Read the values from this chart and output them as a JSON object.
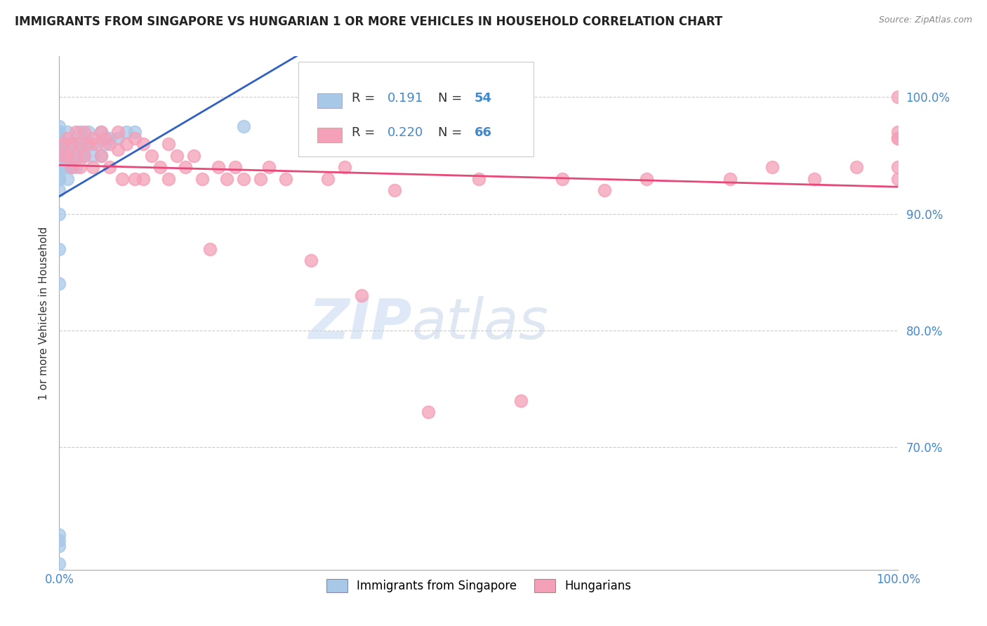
{
  "title": "IMMIGRANTS FROM SINGAPORE VS HUNGARIAN 1 OR MORE VEHICLES IN HOUSEHOLD CORRELATION CHART",
  "source": "Source: ZipAtlas.com",
  "ylabel": "1 or more Vehicles in Household",
  "ytick_values": [
    0.7,
    0.8,
    0.9,
    1.0
  ],
  "xlim": [
    0.0,
    1.0
  ],
  "ylim": [
    0.595,
    1.035
  ],
  "legend_label1": "Immigrants from Singapore",
  "legend_label2": "Hungarians",
  "r1": 0.191,
  "n1": 54,
  "r2": 0.22,
  "n2": 66,
  "color1": "#a8c8e8",
  "color2": "#f4a0b8",
  "trendline1_color": "#3060c0",
  "trendline2_color": "#e84878",
  "grid_color": "#cccccc",
  "singapore_x": [
    0.0,
    0.0,
    0.0,
    0.0,
    0.0,
    0.0,
    0.0,
    0.0,
    0.0,
    0.0,
    0.0,
    0.0,
    0.0,
    0.0,
    0.0,
    0.0,
    0.0,
    0.0,
    0.0,
    0.0,
    0.0,
    0.0,
    0.0,
    0.0,
    0.0,
    0.0,
    0.0,
    0.005,
    0.005,
    0.01,
    0.01,
    0.01,
    0.01,
    0.015,
    0.015,
    0.02,
    0.02,
    0.02,
    0.025,
    0.025,
    0.03,
    0.03,
    0.035,
    0.04,
    0.04,
    0.05,
    0.05,
    0.055,
    0.06,
    0.07,
    0.08,
    0.09,
    0.22,
    0.3
  ],
  "singapore_y": [
    0.6,
    0.615,
    0.62,
    0.625,
    0.84,
    0.87,
    0.9,
    0.92,
    0.93,
    0.93,
    0.94,
    0.94,
    0.94,
    0.945,
    0.945,
    0.95,
    0.95,
    0.955,
    0.955,
    0.96,
    0.96,
    0.965,
    0.965,
    0.97,
    0.97,
    0.97,
    0.975,
    0.94,
    0.96,
    0.93,
    0.94,
    0.95,
    0.97,
    0.94,
    0.96,
    0.94,
    0.95,
    0.96,
    0.95,
    0.97,
    0.95,
    0.96,
    0.97,
    0.95,
    0.96,
    0.95,
    0.97,
    0.96,
    0.965,
    0.965,
    0.97,
    0.97,
    0.975,
    1.0
  ],
  "hungarian_x": [
    0.005,
    0.005,
    0.01,
    0.01,
    0.015,
    0.015,
    0.02,
    0.02,
    0.025,
    0.025,
    0.03,
    0.03,
    0.035,
    0.04,
    0.04,
    0.045,
    0.05,
    0.05,
    0.055,
    0.06,
    0.06,
    0.07,
    0.07,
    0.075,
    0.08,
    0.09,
    0.09,
    0.1,
    0.1,
    0.11,
    0.12,
    0.13,
    0.13,
    0.14,
    0.15,
    0.16,
    0.17,
    0.18,
    0.19,
    0.2,
    0.21,
    0.22,
    0.24,
    0.25,
    0.27,
    0.3,
    0.32,
    0.34,
    0.36,
    0.4,
    0.44,
    0.5,
    0.55,
    0.6,
    0.65,
    0.7,
    0.8,
    0.85,
    0.9,
    0.95,
    1.0,
    1.0,
    1.0,
    1.0,
    1.0,
    1.0
  ],
  "hungarian_y": [
    0.96,
    0.95,
    0.965,
    0.95,
    0.96,
    0.94,
    0.97,
    0.95,
    0.96,
    0.94,
    0.97,
    0.95,
    0.96,
    0.965,
    0.94,
    0.96,
    0.97,
    0.95,
    0.965,
    0.96,
    0.94,
    0.97,
    0.955,
    0.93,
    0.96,
    0.965,
    0.93,
    0.96,
    0.93,
    0.95,
    0.94,
    0.96,
    0.93,
    0.95,
    0.94,
    0.95,
    0.93,
    0.87,
    0.94,
    0.93,
    0.94,
    0.93,
    0.93,
    0.94,
    0.93,
    0.86,
    0.93,
    0.94,
    0.83,
    0.92,
    0.73,
    0.93,
    0.74,
    0.93,
    0.92,
    0.93,
    0.93,
    0.94,
    0.93,
    0.94,
    0.93,
    0.94,
    0.965,
    0.965,
    0.97,
    1.0
  ]
}
